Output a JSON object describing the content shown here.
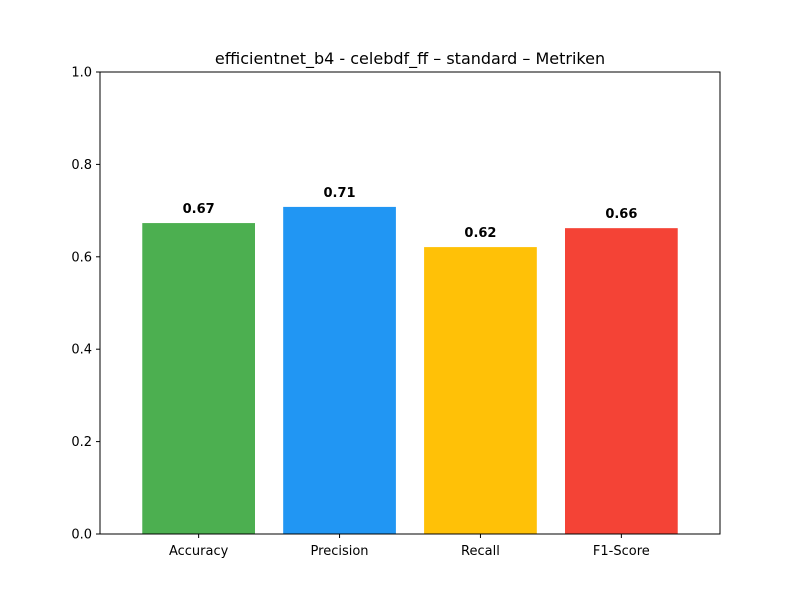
{
  "chart_data": {
    "type": "bar",
    "title": "efficientnet_b4 - celebdf_ff – standard – Metriken",
    "xlabel": "",
    "ylabel": "",
    "categories": [
      "Accuracy",
      "Precision",
      "Recall",
      "F1-Score"
    ],
    "values": [
      0.673,
      0.708,
      0.621,
      0.662
    ],
    "data_labels": [
      "0.67",
      "0.71",
      "0.62",
      "0.66"
    ],
    "colors": [
      "#4caf50",
      "#2196f3",
      "#ffc107",
      "#f44336"
    ],
    "ylim": [
      0,
      1.0
    ],
    "yticks": [
      0.0,
      0.2,
      0.4,
      0.6,
      0.8,
      1.0
    ],
    "ytick_labels": [
      "0.0",
      "0.2",
      "0.4",
      "0.6",
      "0.8",
      "1.0"
    ],
    "grid": false,
    "legend": "none"
  }
}
